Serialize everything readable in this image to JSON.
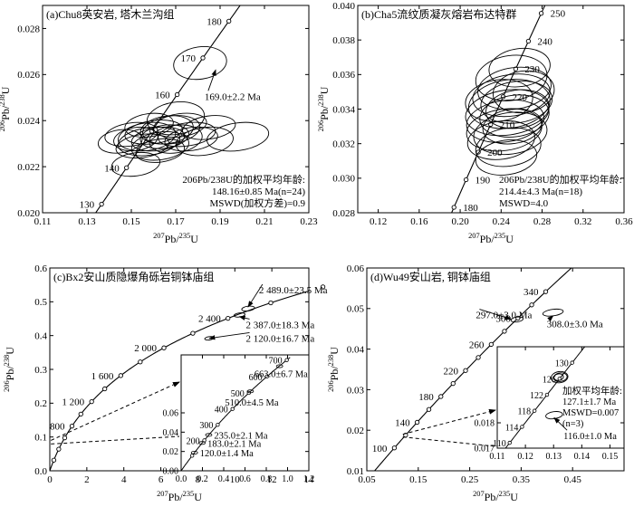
{
  "chart_data": [
    {
      "type": "scatter",
      "panel_label": "(a)Chu8英安岩, 塔木兰沟组",
      "xlabel": "207Pb/235U",
      "ylabel": "206Pb/238U",
      "xlim": [
        0.11,
        0.23
      ],
      "ylim": [
        0.02,
        0.029
      ],
      "xticks": [
        0.11,
        0.13,
        0.15,
        0.17,
        0.19,
        0.21,
        0.23
      ],
      "yticks": [
        0.02,
        0.022,
        0.024,
        0.026,
        0.028
      ],
      "concordia_ages_ma": [
        130,
        140,
        150,
        160,
        170,
        180
      ],
      "concordia_age_labels": [
        "130",
        "140",
        "160",
        "170",
        "180"
      ],
      "ellipses": [
        {
          "x": 0.157,
          "y": 0.0233,
          "rx": 0.013,
          "ry": 0.0006
        },
        {
          "x": 0.162,
          "y": 0.0232,
          "rx": 0.012,
          "ry": 0.0005
        },
        {
          "x": 0.158,
          "y": 0.0231,
          "rx": 0.014,
          "ry": 0.0006
        },
        {
          "x": 0.165,
          "y": 0.0233,
          "rx": 0.011,
          "ry": 0.0005
        },
        {
          "x": 0.152,
          "y": 0.0232,
          "rx": 0.01,
          "ry": 0.0005
        },
        {
          "x": 0.17,
          "y": 0.0232,
          "rx": 0.012,
          "ry": 0.0006
        },
        {
          "x": 0.16,
          "y": 0.0235,
          "rx": 0.013,
          "ry": 0.0005
        },
        {
          "x": 0.155,
          "y": 0.0229,
          "rx": 0.012,
          "ry": 0.0005
        },
        {
          "x": 0.163,
          "y": 0.0229,
          "rx": 0.013,
          "ry": 0.0006
        },
        {
          "x": 0.15,
          "y": 0.0234,
          "rx": 0.012,
          "ry": 0.0005
        },
        {
          "x": 0.168,
          "y": 0.0236,
          "rx": 0.013,
          "ry": 0.0006
        },
        {
          "x": 0.172,
          "y": 0.0238,
          "rx": 0.012,
          "ry": 0.0005
        },
        {
          "x": 0.175,
          "y": 0.0234,
          "rx": 0.013,
          "ry": 0.0005
        },
        {
          "x": 0.177,
          "y": 0.0232,
          "rx": 0.012,
          "ry": 0.0005
        },
        {
          "x": 0.163,
          "y": 0.0227,
          "rx": 0.011,
          "ry": 0.0005
        },
        {
          "x": 0.166,
          "y": 0.0236,
          "rx": 0.012,
          "ry": 0.0006
        },
        {
          "x": 0.158,
          "y": 0.0238,
          "rx": 0.011,
          "ry": 0.0005
        },
        {
          "x": 0.183,
          "y": 0.0231,
          "rx": 0.013,
          "ry": 0.0006
        },
        {
          "x": 0.185,
          "y": 0.0237,
          "rx": 0.012,
          "ry": 0.0005
        },
        {
          "x": 0.198,
          "y": 0.0233,
          "rx": 0.014,
          "ry": 0.0006
        },
        {
          "x": 0.17,
          "y": 0.0241,
          "rx": 0.013,
          "ry": 0.0007
        },
        {
          "x": 0.152,
          "y": 0.0221,
          "rx": 0.011,
          "ry": 0.0005
        },
        {
          "x": 0.145,
          "y": 0.0231,
          "rx": 0.01,
          "ry": 0.0005
        },
        {
          "x": 0.181,
          "y": 0.0265,
          "rx": 0.012,
          "ry": 0.0007
        }
      ],
      "callouts": [
        {
          "text": "169.0±2.2 Ma",
          "x": 0.183,
          "y": 0.0249,
          "ax": 0.188,
          "ay": 0.0262
        }
      ],
      "annotation_lines": [
        "206Pb/238U的加权平均年龄:",
        "148.16±0.85 Ma(n=24)",
        "MSWD(加权方差)=0.9"
      ]
    },
    {
      "type": "scatter",
      "panel_label": "(b)Cha5流纹质凝灰熔岩布达特群",
      "xlabel": "207Pb/235U",
      "ylabel": "206Pb/238U",
      "xlim": [
        0.1,
        0.36
      ],
      "ylim": [
        0.028,
        0.04
      ],
      "xticks": [
        0.12,
        0.16,
        0.2,
        0.24,
        0.28,
        0.32,
        0.36
      ],
      "yticks": [
        0.028,
        0.03,
        0.032,
        0.034,
        0.036,
        0.038,
        0.04
      ],
      "concordia_ages_ma": [
        180,
        190,
        200,
        210,
        220,
        230,
        240,
        250
      ],
      "concordia_age_labels": [
        "180",
        "190",
        "200",
        "210",
        "220",
        "230",
        "240",
        "250"
      ],
      "ellipses": [
        {
          "x": 0.248,
          "y": 0.0343,
          "rx": 0.04,
          "ry": 0.0014
        },
        {
          "x": 0.25,
          "y": 0.0348,
          "rx": 0.038,
          "ry": 0.0012
        },
        {
          "x": 0.246,
          "y": 0.0338,
          "rx": 0.041,
          "ry": 0.0013
        },
        {
          "x": 0.253,
          "y": 0.0352,
          "rx": 0.036,
          "ry": 0.0012
        },
        {
          "x": 0.244,
          "y": 0.0333,
          "rx": 0.038,
          "ry": 0.0012
        },
        {
          "x": 0.255,
          "y": 0.0344,
          "rx": 0.035,
          "ry": 0.0012
        },
        {
          "x": 0.243,
          "y": 0.0328,
          "rx": 0.037,
          "ry": 0.0012
        },
        {
          "x": 0.25,
          "y": 0.0358,
          "rx": 0.035,
          "ry": 0.0013
        },
        {
          "x": 0.24,
          "y": 0.0322,
          "rx": 0.033,
          "ry": 0.0011
        },
        {
          "x": 0.247,
          "y": 0.0318,
          "rx": 0.032,
          "ry": 0.0011
        },
        {
          "x": 0.253,
          "y": 0.0336,
          "rx": 0.034,
          "ry": 0.0012
        },
        {
          "x": 0.262,
          "y": 0.035,
          "rx": 0.03,
          "ry": 0.0012
        },
        {
          "x": 0.238,
          "y": 0.0345,
          "rx": 0.033,
          "ry": 0.0012
        },
        {
          "x": 0.258,
          "y": 0.0364,
          "rx": 0.03,
          "ry": 0.0011
        },
        {
          "x": 0.245,
          "y": 0.0312,
          "rx": 0.03,
          "ry": 0.001
        },
        {
          "x": 0.251,
          "y": 0.033,
          "rx": 0.029,
          "ry": 0.001
        },
        {
          "x": 0.256,
          "y": 0.034,
          "rx": 0.031,
          "ry": 0.0011
        },
        {
          "x": 0.249,
          "y": 0.0326,
          "rx": 0.036,
          "ry": 0.0012
        }
      ],
      "annotation_lines": [
        "206Pb/238U的加权平均年龄:",
        "214.4±4.3 Ma(n=18)",
        "MSWD=4.0"
      ]
    },
    {
      "type": "scatter",
      "panel_label": "(c)Bx2安山质隐爆角砾岩铜钵庙组",
      "xlabel": "207Pb/235U",
      "ylabel": "206Pb/238U",
      "xlim": [
        0,
        14
      ],
      "ylim": [
        0,
        0.6
      ],
      "xticks": [
        0,
        2,
        4,
        6,
        8,
        10,
        12,
        14
      ],
      "yticks": [
        0,
        0.1,
        0.2,
        0.3,
        0.4,
        0.5,
        0.6
      ],
      "concordia_ages_ma": [
        200,
        400,
        600,
        800,
        1000,
        1200,
        1400,
        1600,
        1800,
        2000,
        2200,
        2400,
        2600,
        2800
      ],
      "concordia_age_labels": [
        "800",
        "1 200",
        "1 600",
        "2 000",
        "2 400"
      ],
      "ellipses": [
        {
          "x": 10.72,
          "y": 0.48,
          "rx": 0.35,
          "ry": 0.007
        },
        {
          "x": 10.25,
          "y": 0.461,
          "rx": 0.3,
          "ry": 0.006
        },
        {
          "x": 8.62,
          "y": 0.392,
          "rx": 0.25,
          "ry": 0.005
        }
      ],
      "callouts": [
        {
          "text": "2 489.0±23.5 Ma",
          "x": 11.3,
          "y": 0.525,
          "ax": 10.72,
          "ay": 0.485
        },
        {
          "text": "2 387.0±18.3 Ma",
          "x": 10.6,
          "y": 0.422,
          "ax": 10.25,
          "ay": 0.456
        },
        {
          "text": "2 120.0±16.7 Ma",
          "x": 10.6,
          "y": 0.382,
          "ax": 8.62,
          "ay": 0.392
        }
      ],
      "inset": {
        "xlim": [
          0,
          1.2
        ],
        "ylim": [
          0,
          0.12
        ],
        "xticks": [
          0,
          0.2,
          0.4,
          0.6,
          0.8,
          1.0,
          1.2
        ],
        "yticks": [
          0,
          0.02,
          0.04,
          0.06
        ],
        "concordia_ages_ma": [
          100,
          200,
          300,
          400,
          500,
          600,
          700
        ],
        "concordia_age_labels": [
          "200",
          "300",
          "400",
          "500",
          "600",
          "700"
        ],
        "points": [
          {
            "text": "663.0±6.7 Ma",
            "x": 0.925,
            "y": 0.1083
          },
          {
            "text": "510.0±4.5 Ma",
            "x": 0.65,
            "y": 0.0823
          },
          {
            "text": "235.0±2.1 Ma",
            "x": 0.259,
            "y": 0.0371
          },
          {
            "text": "183.0±2.1 Ma",
            "x": 0.197,
            "y": 0.0288
          },
          {
            "text": "120.0±1.4 Ma",
            "x": 0.125,
            "y": 0.0188
          }
        ]
      }
    },
    {
      "type": "scatter",
      "panel_label": "(d)Wu49安山岩, 铜钵庙组",
      "xlabel": "207Pb/235U",
      "ylabel": "206Pb/238U",
      "xlim": [
        0.05,
        0.55
      ],
      "ylim": [
        0.01,
        0.06
      ],
      "xticks": [
        0.05,
        0.15,
        0.25,
        0.35,
        0.45
      ],
      "yticks": [
        0.01,
        0.02,
        0.03,
        0.04,
        0.05,
        0.06
      ],
      "concordia_ages_ma": [
        100,
        120,
        140,
        160,
        180,
        200,
        220,
        240,
        260,
        280,
        300,
        320,
        340
      ],
      "concordia_age_labels": [
        "100",
        "140",
        "180",
        "220",
        "260",
        "300",
        "340"
      ],
      "ellipses": [
        {
          "x": 0.342,
          "y": 0.0473,
          "rx": 0.012,
          "ry": 0.0006
        },
        {
          "x": 0.412,
          "y": 0.049,
          "rx": 0.02,
          "ry": 0.0008
        }
      ],
      "callouts": [
        {
          "text": "297.0±3.0 Ma",
          "x": 0.262,
          "y": 0.0476,
          "ax": 0.33,
          "ay": 0.0474
        },
        {
          "text": "308.0±3.0 Ma",
          "x": 0.4,
          "y": 0.0454,
          "ax": 0.412,
          "ay": 0.0482
        }
      ],
      "inset": {
        "xlim": [
          0.11,
          0.155
        ],
        "ylim": [
          0.017,
          0.021
        ],
        "xticks": [
          0.11,
          0.12,
          0.13,
          0.14,
          0.15
        ],
        "xticklabels": [
          "0.11",
          "0.12",
          "0.13",
          "0.14",
          "0.15"
        ],
        "yticks": [
          0.017,
          0.018
        ],
        "concordia_ages_ma": [
          110,
          114,
          118,
          122,
          126,
          130
        ],
        "concordia_age_labels": [
          "110",
          "114",
          "118",
          "122",
          "126",
          "130"
        ],
        "ellipses": [
          {
            "x": 0.1321,
            "y": 0.0198,
            "rx": 0.003,
            "ry": 0.00022
          },
          {
            "x": 0.1324,
            "y": 0.0198,
            "rx": 0.0024,
            "ry": 0.00017
          },
          {
            "x": 0.1318,
            "y": 0.0198,
            "rx": 0.0017,
            "ry": 0.00013
          },
          {
            "x": 0.1302,
            "y": 0.0183,
            "rx": 0.003,
            "ry": 0.00014
          }
        ],
        "callouts": [
          {
            "text": "116.0±1.0 Ma",
            "x": 0.1335,
            "y": 0.01735,
            "ax": 0.1302,
            "ay": 0.0182
          }
        ],
        "annotation_lines": [
          "加权平均年龄:",
          "127.1±1.7 Ma",
          "MSWD=0.007",
          "(n=3)"
        ]
      }
    }
  ]
}
